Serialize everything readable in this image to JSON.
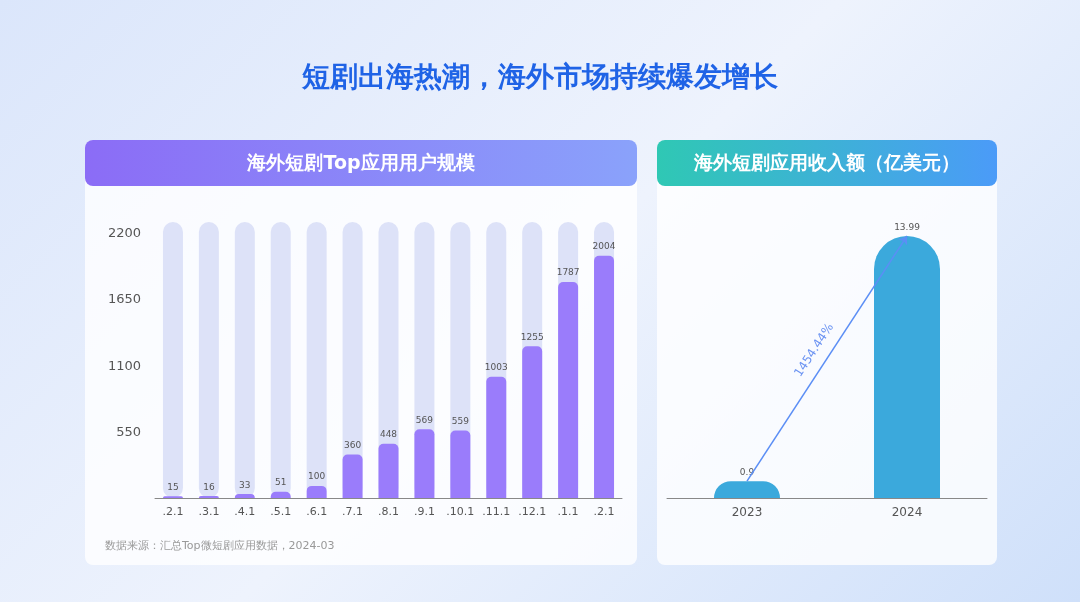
{
  "chart_data": [
    {
      "type": "bar",
      "title": "短剧出海热潮，海外市场持续爆发增长",
      "subtitle": "海外短剧Top应用用户规模",
      "categories": [
        ".2.1",
        ".3.1",
        ".4.1",
        ".5.1",
        ".6.1",
        ".7.1",
        ".8.1",
        ".9.1",
        ".10.1",
        ".11.1",
        ".12.1",
        ".1.1",
        ".2.1"
      ],
      "values": [
        15,
        16,
        33,
        51,
        100,
        360,
        448,
        569,
        559,
        1003,
        1255,
        1787,
        2004
      ],
      "color": "#9a7cfb",
      "ylim": [
        0,
        2200
      ],
      "yticks": [
        550,
        1100,
        1650,
        2200
      ],
      "data_labels": true,
      "annotations": [
        "数据来源：汇总Top微短剧应用数据，2024-03"
      ]
    },
    {
      "type": "bar",
      "title": "海外短剧应用收入额（亿美元）",
      "categories": [
        "2023",
        "2024"
      ],
      "values": [
        0.9,
        13.99
      ],
      "color": "#3ba9dc",
      "data_labels": true,
      "annotations": [
        "1454.44%"
      ]
    }
  ]
}
